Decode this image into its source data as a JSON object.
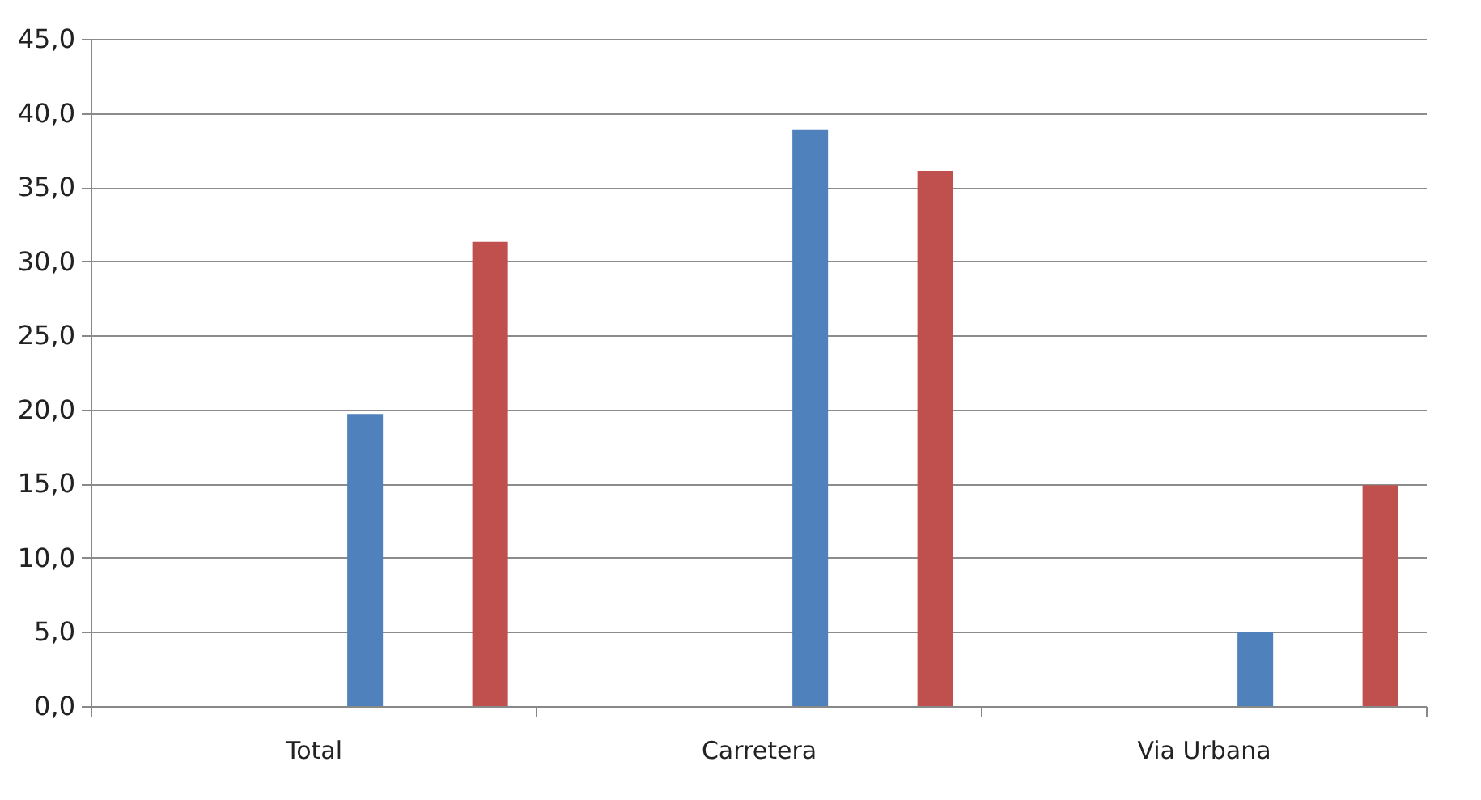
{
  "chart_data": {
    "type": "bar",
    "categories": [
      "Total",
      "Carretera",
      "Via Urbana"
    ],
    "series": [
      {
        "color": "#4f81bd",
        "values": [
          19.7,
          38.9,
          5.0
        ]
      },
      {
        "color": "#c0504d",
        "values": [
          31.3,
          36.1,
          14.9
        ]
      }
    ],
    "ylim": [
      0,
      45
    ],
    "yticks": [
      {
        "value": 0,
        "label": "0,0"
      },
      {
        "value": 5,
        "label": "5,0"
      },
      {
        "value": 10,
        "label": "10,0"
      },
      {
        "value": 15,
        "label": "15,0"
      },
      {
        "value": 20,
        "label": "20,0"
      },
      {
        "value": 25,
        "label": "25,0"
      },
      {
        "value": 30,
        "label": "30,0"
      },
      {
        "value": 35,
        "label": "35,0"
      },
      {
        "value": 40,
        "label": "40,0"
      },
      {
        "value": 45,
        "label": "45,0"
      }
    ],
    "grid": "y"
  }
}
